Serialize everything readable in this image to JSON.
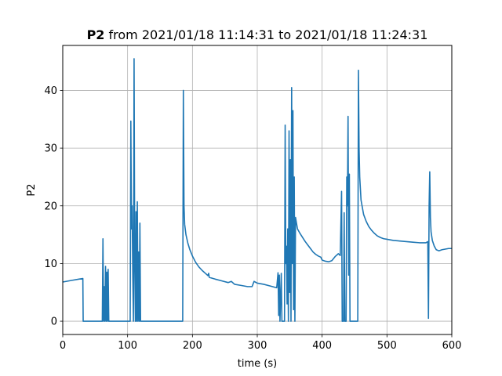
{
  "chart_data": {
    "type": "line",
    "title": {
      "bold": "P2",
      "rest": " from 2021/01/18 11:14:31 to 2021/01/18 11:24:31"
    },
    "xlabel": "time (s)",
    "ylabel": "P2",
    "xlim": [
      0,
      600
    ],
    "ylim": [
      -2.3,
      47.8
    ],
    "xticks": [
      0,
      100,
      200,
      300,
      400,
      500,
      600
    ],
    "yticks": [
      0,
      10,
      20,
      30,
      40
    ],
    "grid": true,
    "line_color": "#1f77b4",
    "series": [
      {
        "points": [
          [
            0,
            6.8
          ],
          [
            5,
            6.9
          ],
          [
            10,
            7.0
          ],
          [
            15,
            7.1
          ],
          [
            20,
            7.2
          ],
          [
            25,
            7.3
          ],
          [
            31,
            7.4
          ],
          [
            31.5,
            0
          ],
          [
            61,
            0
          ],
          [
            62,
            14.3
          ],
          [
            63,
            0
          ],
          [
            64,
            6.0
          ],
          [
            65,
            0
          ],
          [
            66,
            9.5
          ],
          [
            67,
            0
          ],
          [
            68,
            8.5
          ],
          [
            69,
            0
          ],
          [
            70,
            9.0
          ],
          [
            71,
            0
          ],
          [
            104,
            0
          ],
          [
            105,
            34.7
          ],
          [
            106,
            16
          ],
          [
            107,
            20
          ],
          [
            108,
            8
          ],
          [
            109,
            0
          ],
          [
            110,
            45.5
          ],
          [
            111,
            10
          ],
          [
            112,
            0
          ],
          [
            113,
            19
          ],
          [
            114,
            0
          ],
          [
            115,
            20.7
          ],
          [
            116,
            0
          ],
          [
            117,
            12
          ],
          [
            118,
            0
          ],
          [
            119,
            17
          ],
          [
            120,
            0
          ],
          [
            185,
            0
          ],
          [
            186,
            40.0
          ],
          [
            187,
            20
          ],
          [
            188,
            16.8
          ],
          [
            190,
            15
          ],
          [
            193,
            13.5
          ],
          [
            196,
            12.4
          ],
          [
            200,
            11.3
          ],
          [
            205,
            10.2
          ],
          [
            210,
            9.4
          ],
          [
            215,
            8.8
          ],
          [
            220,
            8.3
          ],
          [
            224,
            7.9
          ],
          [
            225,
            8.3
          ],
          [
            226,
            7.6
          ],
          [
            235,
            7.3
          ],
          [
            245,
            7.0
          ],
          [
            255,
            6.7
          ],
          [
            260,
            6.9
          ],
          [
            265,
            6.4
          ],
          [
            275,
            6.2
          ],
          [
            285,
            6.0
          ],
          [
            292,
            6.0
          ],
          [
            295,
            6.9
          ],
          [
            300,
            6.6
          ],
          [
            310,
            6.4
          ],
          [
            320,
            6.1
          ],
          [
            330,
            5.8
          ],
          [
            332,
            8.4
          ],
          [
            333,
            1.0
          ],
          [
            334,
            8.0
          ],
          [
            335,
            0
          ],
          [
            337,
            8.3
          ],
          [
            338,
            0
          ],
          [
            342,
            0
          ],
          [
            343,
            34.0
          ],
          [
            344,
            10
          ],
          [
            345,
            13.0
          ],
          [
            346,
            3
          ],
          [
            347,
            16
          ],
          [
            348,
            0
          ],
          [
            349,
            33.0
          ],
          [
            350,
            5
          ],
          [
            351,
            28
          ],
          [
            352,
            0
          ],
          [
            353,
            40.5
          ],
          [
            354,
            10
          ],
          [
            355,
            36.5
          ],
          [
            356,
            2
          ],
          [
            357,
            25
          ],
          [
            358,
            0
          ],
          [
            359,
            18
          ],
          [
            362,
            16
          ],
          [
            366,
            15.2
          ],
          [
            370,
            14.5
          ],
          [
            374,
            13.8
          ],
          [
            378,
            13.2
          ],
          [
            382,
            12.6
          ],
          [
            386,
            12.0
          ],
          [
            390,
            11.6
          ],
          [
            394,
            11.3
          ],
          [
            398,
            11.1
          ],
          [
            400,
            10.6
          ],
          [
            405,
            10.4
          ],
          [
            410,
            10.3
          ],
          [
            415,
            10.5
          ],
          [
            420,
            11.2
          ],
          [
            425,
            11.7
          ],
          [
            428,
            11.4
          ],
          [
            430,
            22.5
          ],
          [
            431,
            0
          ],
          [
            433,
            0
          ],
          [
            434,
            18.8
          ],
          [
            435,
            0
          ],
          [
            437,
            0
          ],
          [
            438,
            25.0
          ],
          [
            439,
            20
          ],
          [
            440,
            35.5
          ],
          [
            441,
            8
          ],
          [
            442,
            25.5
          ],
          [
            443,
            0
          ],
          [
            455,
            0
          ],
          [
            456,
            43.5
          ],
          [
            457,
            30
          ],
          [
            458,
            25
          ],
          [
            460,
            21
          ],
          [
            464,
            18.5
          ],
          [
            468,
            17.3
          ],
          [
            472,
            16.4
          ],
          [
            476,
            15.8
          ],
          [
            480,
            15.3
          ],
          [
            485,
            14.8
          ],
          [
            490,
            14.5
          ],
          [
            495,
            14.3
          ],
          [
            500,
            14.2
          ],
          [
            510,
            14.0
          ],
          [
            520,
            13.9
          ],
          [
            530,
            13.8
          ],
          [
            540,
            13.7
          ],
          [
            550,
            13.6
          ],
          [
            560,
            13.6
          ],
          [
            563,
            13.8
          ],
          [
            564,
            0.5
          ],
          [
            565,
            20
          ],
          [
            566,
            25.9
          ],
          [
            567,
            18
          ],
          [
            568,
            15.5
          ],
          [
            570,
            14.0
          ],
          [
            573,
            13.0
          ],
          [
            576,
            12.4
          ],
          [
            580,
            12.2
          ],
          [
            585,
            12.4
          ],
          [
            590,
            12.5
          ],
          [
            595,
            12.6
          ],
          [
            600,
            12.6
          ]
        ]
      }
    ]
  }
}
